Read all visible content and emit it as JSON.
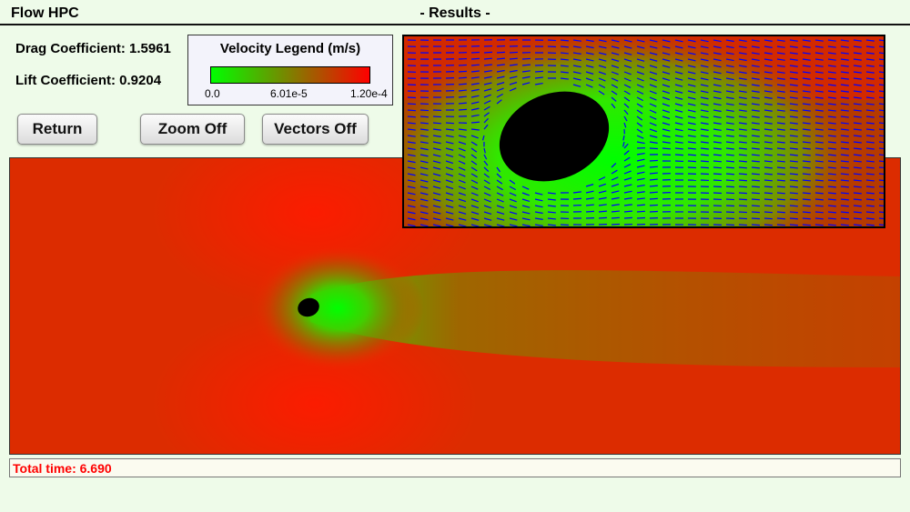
{
  "header": {
    "app_title": "Flow HPC",
    "page_title": "- Results -"
  },
  "stats": {
    "drag": "Drag Coefficient: 1.5961",
    "lift": "Lift Coefficient: 0.9204"
  },
  "legend": {
    "title": "Velocity Legend (m/s)",
    "tick_min": "0.0",
    "tick_mid": "6.01e-5",
    "tick_max": "1.20e-4",
    "color_low": "#00ff00",
    "color_high": "#ff0000"
  },
  "buttons": {
    "return_label": "Return",
    "zoom_label": "Zoom Off",
    "vectors_label": "Vectors Off"
  },
  "status": {
    "total_time": "Total time: 6.690"
  },
  "colors": {
    "vector_arrows": "#0000ff",
    "obstacle": "#000000",
    "status_text": "#ff0000"
  }
}
